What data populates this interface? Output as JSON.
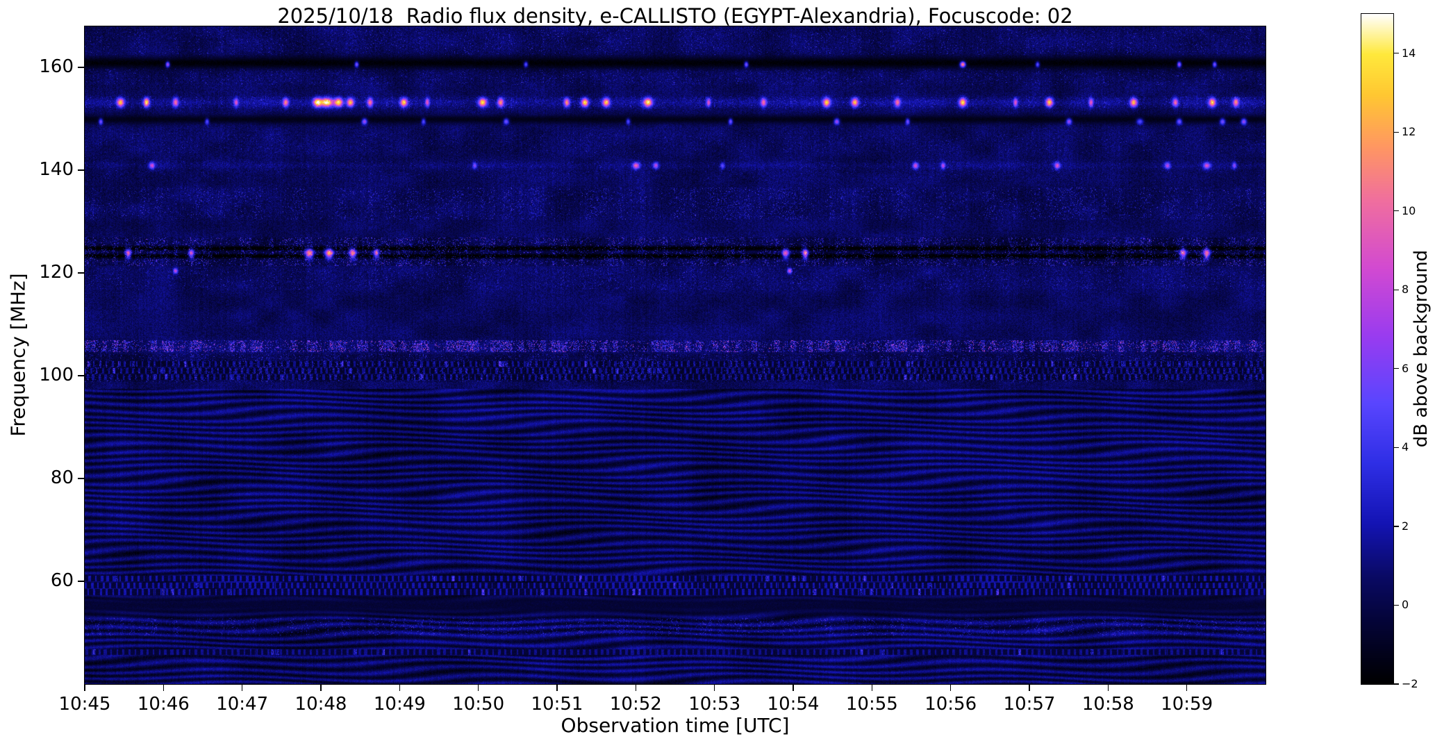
{
  "chart_data": {
    "type": "heatmap",
    "title": "2025/10/18  Radio flux density, e-CALLISTO (EGYPT-Alexandria), Focuscode: 02",
    "xlabel": "Observation time [UTC]",
    "ylabel": "Frequency [MHz]",
    "x_tick_labels": [
      "10:45",
      "10:46",
      "10:47",
      "10:48",
      "10:49",
      "10:50",
      "10:51",
      "10:52",
      "10:53",
      "10:54",
      "10:55",
      "10:56",
      "10:57",
      "10:58",
      "10:59"
    ],
    "x_range_minutes": [
      0,
      15
    ],
    "x_end_time": "11:00",
    "y_tick_values": [
      160,
      140,
      120,
      100,
      80,
      60
    ],
    "y_range_mhz": [
      40,
      168
    ],
    "grid": false,
    "colorbar": {
      "label": "dB above background",
      "value_range": [
        -2,
        15
      ],
      "ticks": [
        {
          "value": 14,
          "label": "14"
        },
        {
          "value": 12,
          "label": "12"
        },
        {
          "value": 10,
          "label": "10"
        },
        {
          "value": 8,
          "label": "8"
        },
        {
          "value": 6,
          "label": "6"
        },
        {
          "value": 4,
          "label": "4"
        },
        {
          "value": 2,
          "label": "2"
        },
        {
          "value": 0,
          "label": "0"
        },
        {
          "value": -2,
          "label": "−2"
        }
      ],
      "colormap_stops": [
        [
          0.0,
          "#000000"
        ],
        [
          0.1,
          "#05053c"
        ],
        [
          0.16,
          "#0a0a64"
        ],
        [
          0.24,
          "#1414b4"
        ],
        [
          0.33,
          "#2f2fe6"
        ],
        [
          0.42,
          "#5a46ff"
        ],
        [
          0.52,
          "#9a3cf0"
        ],
        [
          0.62,
          "#d24ad2"
        ],
        [
          0.72,
          "#f06ea0"
        ],
        [
          0.8,
          "#ff9664"
        ],
        [
          0.88,
          "#ffc832"
        ],
        [
          0.94,
          "#ffe93c"
        ],
        [
          1.0,
          "#ffffff"
        ]
      ]
    },
    "background_db": {
      "mean": 0.45,
      "fine_noise": 1.7,
      "patch_noise": 1.1,
      "column_noise": 0.4
    },
    "seed": 20251018,
    "features": [
      {
        "kind": "speckle-band",
        "f_lo": 162.5,
        "f_hi": 167.5,
        "density": 0.06,
        "amp": 4.0
      },
      {
        "kind": "dark-stripe",
        "freq": 160.9,
        "width": 1.4,
        "db": -1.8
      },
      {
        "kind": "burst-row",
        "freq": 160.6,
        "width": 0.55,
        "baseline": 0,
        "bursts": [
          [
            1.05,
            9,
            3
          ],
          [
            3.45,
            8,
            3
          ],
          [
            5.6,
            7,
            3
          ],
          [
            8.4,
            8,
            3
          ],
          [
            11.15,
            13,
            4
          ],
          [
            12.1,
            7,
            3
          ],
          [
            13.9,
            9,
            3
          ],
          [
            14.35,
            8,
            3
          ]
        ]
      },
      {
        "kind": "speckle-band",
        "f_lo": 156.6,
        "f_hi": 159.8,
        "density": 0.07,
        "amp": 3.5
      },
      {
        "kind": "burst-row",
        "freq": 153.2,
        "width": 0.85,
        "baseline": 0.9,
        "bursts": [
          [
            0.45,
            12,
            5
          ],
          [
            0.78,
            13,
            4
          ],
          [
            1.15,
            9,
            4
          ],
          [
            1.92,
            8,
            3
          ],
          [
            2.55,
            10,
            4
          ],
          [
            2.95,
            13,
            6
          ],
          [
            3.07,
            14,
            9
          ],
          [
            3.22,
            13,
            6
          ],
          [
            3.37,
            12,
            5
          ],
          [
            3.62,
            9,
            4
          ],
          [
            4.05,
            12,
            5
          ],
          [
            4.35,
            8,
            3
          ],
          [
            5.05,
            13,
            6
          ],
          [
            5.28,
            10,
            4
          ],
          [
            6.12,
            10,
            4
          ],
          [
            6.35,
            13,
            5
          ],
          [
            6.62,
            12,
            5
          ],
          [
            7.15,
            13,
            6
          ],
          [
            7.92,
            8,
            3
          ],
          [
            8.62,
            9,
            4
          ],
          [
            9.42,
            12,
            5
          ],
          [
            9.78,
            12,
            5
          ],
          [
            10.32,
            9,
            4
          ],
          [
            11.15,
            13,
            5
          ],
          [
            11.82,
            8,
            3
          ],
          [
            12.25,
            12,
            5
          ],
          [
            12.78,
            8,
            3
          ],
          [
            13.32,
            12,
            5
          ],
          [
            13.85,
            9,
            4
          ],
          [
            14.32,
            12,
            5
          ],
          [
            14.62,
            10,
            4
          ]
        ]
      },
      {
        "kind": "speckle-band",
        "f_lo": 152.0,
        "f_hi": 154.4,
        "density": 0.12,
        "amp": 3.0
      },
      {
        "kind": "dark-stripe",
        "freq": 149.9,
        "width": 1.0,
        "db": -1.3
      },
      {
        "kind": "burst-row",
        "freq": 149.5,
        "width": 0.6,
        "baseline": 0,
        "bursts": [
          [
            0.2,
            7,
            3
          ],
          [
            1.55,
            6,
            3
          ],
          [
            3.55,
            8,
            4
          ],
          [
            4.3,
            6,
            3
          ],
          [
            5.35,
            7,
            4
          ],
          [
            6.9,
            6,
            3
          ],
          [
            8.2,
            7,
            3
          ],
          [
            9.55,
            8,
            4
          ],
          [
            10.45,
            7,
            3
          ],
          [
            12.5,
            8,
            4
          ],
          [
            13.4,
            6,
            5
          ],
          [
            13.9,
            7,
            4
          ],
          [
            14.45,
            7,
            4
          ],
          [
            14.72,
            8,
            4
          ]
        ]
      },
      {
        "kind": "speckle-band",
        "f_lo": 143.4,
        "f_hi": 147.2,
        "density": 0.05,
        "amp": 3.0
      },
      {
        "kind": "burst-row",
        "freq": 140.9,
        "width": 0.65,
        "baseline": 0.5,
        "bursts": [
          [
            0.85,
            8,
            4
          ],
          [
            4.95,
            5,
            3
          ],
          [
            7.0,
            9,
            5
          ],
          [
            7.25,
            7,
            4
          ],
          [
            8.1,
            5,
            3
          ],
          [
            10.55,
            8,
            4
          ],
          [
            10.9,
            7,
            3
          ],
          [
            12.35,
            8,
            4
          ],
          [
            13.75,
            7,
            4
          ],
          [
            14.25,
            8,
            5
          ],
          [
            14.6,
            6,
            3
          ]
        ]
      },
      {
        "kind": "speckle-band",
        "f_lo": 138.0,
        "f_hi": 141.8,
        "density": 0.05,
        "amp": 2.5
      },
      {
        "kind": "speckle-band",
        "f_lo": 130.4,
        "f_hi": 136.6,
        "density": 0.1,
        "amp": 4.5
      },
      {
        "kind": "speckle-band",
        "f_lo": 121.4,
        "f_hi": 126.9,
        "density": 0.17,
        "amp": 6.5,
        "base": -0.5
      },
      {
        "kind": "dark-stripe",
        "freq": 123.3,
        "width": 0.55,
        "db": -1.8
      },
      {
        "kind": "dark-stripe",
        "freq": 124.8,
        "width": 0.55,
        "db": -1.8
      },
      {
        "kind": "burst-row",
        "freq": 123.8,
        "width": 0.95,
        "baseline": 0,
        "bursts": [
          [
            0.55,
            10,
            4
          ],
          [
            1.35,
            9,
            4
          ],
          [
            2.85,
            12,
            6
          ],
          [
            3.1,
            13,
            6
          ],
          [
            3.4,
            11,
            5
          ],
          [
            3.7,
            9,
            4
          ],
          [
            8.9,
            10,
            5
          ],
          [
            9.15,
            11,
            4
          ],
          [
            13.95,
            10,
            5
          ],
          [
            14.25,
            11,
            5
          ]
        ]
      },
      {
        "kind": "burst-row",
        "freq": 120.4,
        "width": 0.5,
        "baseline": 0,
        "bursts": [
          [
            1.15,
            8,
            3
          ],
          [
            8.95,
            9,
            3
          ]
        ]
      },
      {
        "kind": "speckle-band",
        "f_lo": 116.8,
        "f_hi": 121.0,
        "density": 0.08,
        "amp": 3.5
      },
      {
        "kind": "speckle-band",
        "f_lo": 104.6,
        "f_hi": 106.9,
        "density": 0.3,
        "amp": 9.0
      },
      {
        "kind": "speckle-band",
        "f_lo": 98.8,
        "f_hi": 104.2,
        "density": 0.12,
        "amp": 4.5,
        "base": -0.4
      },
      {
        "kind": "dotted-rows",
        "freqs": [
          99.7,
          101.0,
          102.3
        ],
        "amp": 2.2
      },
      {
        "kind": "wave-region",
        "f_lo": 40,
        "f_hi": 97.5,
        "contrast": 1.25
      },
      {
        "kind": "dotted-rows",
        "freqs": [
          57.9,
          59.2,
          60.5
        ],
        "amp": 2.4
      },
      {
        "kind": "dark-stripe",
        "freq": 55.3,
        "width": 2.0,
        "db": -0.5
      },
      {
        "kind": "speckle-band",
        "f_lo": 49.4,
        "f_hi": 52.9,
        "density": 0.1,
        "amp": 4.5
      },
      {
        "kind": "dotted-rows",
        "freqs": [
          46.2
        ],
        "amp": 1.8
      }
    ]
  }
}
